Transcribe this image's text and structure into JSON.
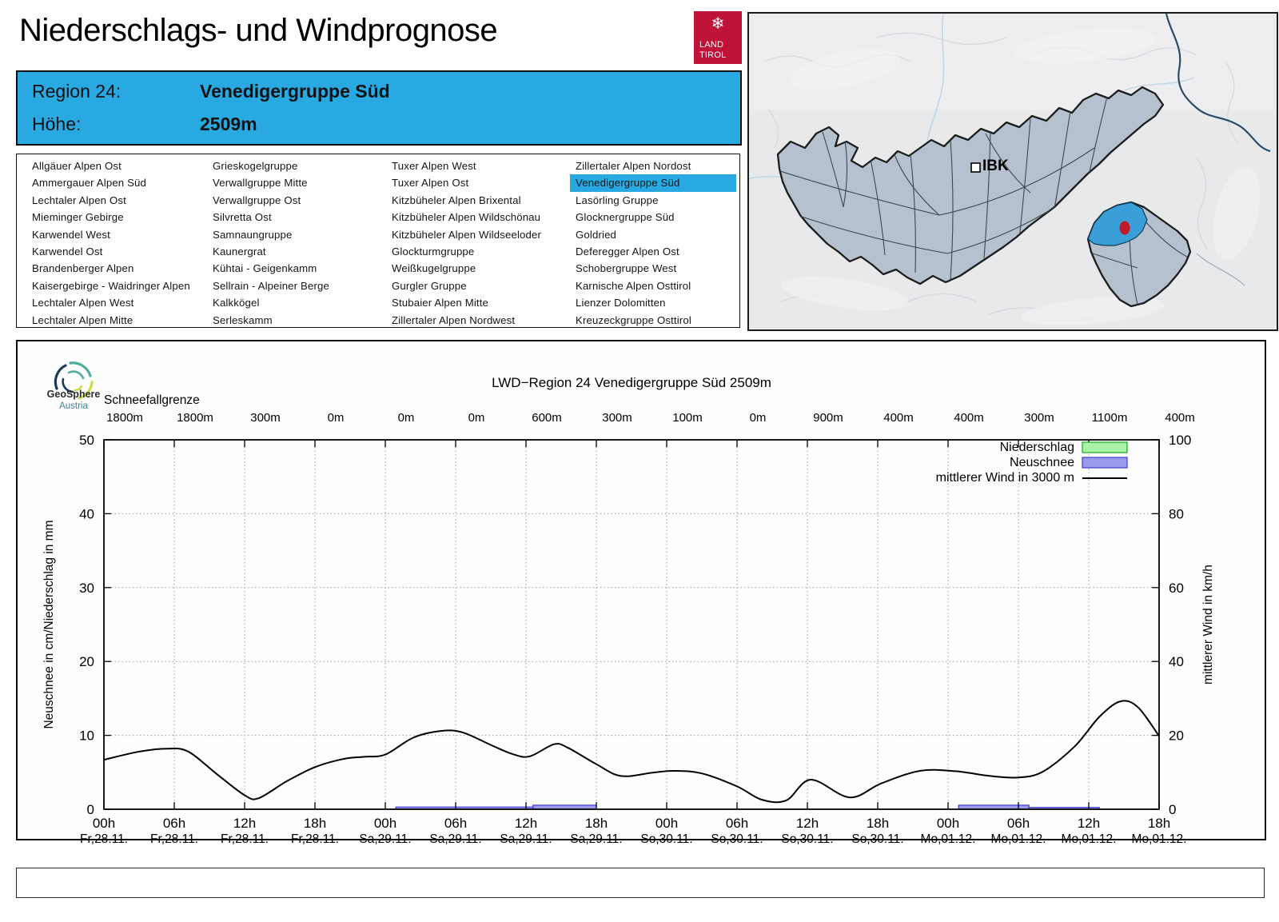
{
  "page": {
    "title": "Niederschlags- und Windprognose"
  },
  "brand": {
    "line1": "LAND",
    "line2": "TIROL",
    "flake_icon": "snowflake-icon",
    "color": "#bf1338"
  },
  "header": {
    "region_label": "Region 24:",
    "region_value": "Venedigergruppe Süd",
    "altitude_label": "Höhe:",
    "altitude_value": "2509m",
    "accent_color": "#29a9e2"
  },
  "region_list": {
    "selected": "Venedigergruppe Süd",
    "columns": [
      [
        "Allgäuer Alpen Ost",
        "Ammergauer Alpen Süd",
        "Lechtaler Alpen Ost",
        "Mieminger Gebirge",
        "Karwendel West",
        "Karwendel Ost",
        "Brandenberger Alpen",
        "Kaisergebirge - Waidringer Alpen",
        "Lechtaler Alpen West",
        "Lechtaler Alpen Mitte"
      ],
      [
        "Grieskogelgruppe",
        "Verwallgruppe Mitte",
        "Verwallgruppe Ost",
        "Silvretta Ost",
        "Samnaungruppe",
        "Kaunergrat",
        "Kühtai - Geigenkamm",
        "Sellrain - Alpeiner Berge",
        "Kalkkögel",
        "Serleskamm"
      ],
      [
        "Tuxer Alpen West",
        "Tuxer Alpen Ost",
        "Kitzbüheler Alpen Brixental",
        "Kitzbüheler Alpen Wildschönau",
        "Kitzbüheler Alpen Wildseeloder",
        "Glockturmgruppe",
        "Weißkugelgruppe",
        "Gurgler Gruppe",
        "Stubaier Alpen Mitte",
        "Zillertaler Alpen Nordwest"
      ],
      [
        "Zillertaler Alpen Nordost",
        "Venedigergruppe Süd",
        "Lasörling Gruppe",
        "Glocknergruppe Süd",
        "Goldried",
        "Deferegger Alpen Ost",
        "Schobergruppe West",
        "Karnische Alpen Osttirol",
        "Lienzer Dolomitten",
        "Kreuzeckgruppe Osttirol"
      ]
    ]
  },
  "map": {
    "ibk_label": "IBK",
    "highlight_color": "#3a9fd9",
    "region_fill": "#b5c1ce",
    "dot_color": "#c11a28"
  },
  "geosphere": {
    "name": "GeoSphere",
    "sub": "Austria"
  },
  "chart_data": {
    "type": "line",
    "title": "LWD−Region 24 Venedigergruppe Süd 2509m",
    "snowline": {
      "label": "Schneefallgrenze",
      "values": [
        "1800m",
        "1800m",
        "300m",
        "0m",
        "0m",
        "0m",
        "600m",
        "300m",
        "100m",
        "0m",
        "900m",
        "400m",
        "400m",
        "300m",
        "1100m",
        "400m"
      ]
    },
    "axes": {
      "left_label": "Neuschnee in cm/Niederschlag in mm",
      "left_ticks": [
        0,
        10,
        20,
        30,
        40,
        50
      ],
      "left_range": [
        0,
        50
      ],
      "right_label": "mittlerer Wind in km/h",
      "right_ticks": [
        0,
        20,
        40,
        60,
        80,
        100
      ],
      "right_range": [
        0,
        100
      ],
      "x_hours": [
        "00h",
        "06h",
        "12h",
        "18h",
        "00h",
        "06h",
        "12h",
        "18h",
        "00h",
        "06h",
        "12h",
        "18h",
        "00h",
        "06h",
        "12h",
        "18h"
      ],
      "x_dates": [
        "Fr,28.11.",
        "Fr,28.11.",
        "Fr,28.11.",
        "Fr,28.11.",
        "Sa,29.11.",
        "Sa,29.11.",
        "Sa,29.11.",
        "Sa,29.11.",
        "So,30.11.",
        "So,30.11.",
        "So,30.11.",
        "So,30.11.",
        "Mo,01.12.",
        "Mo,01.12.",
        "Mo,01.12.",
        "Mo,01.12."
      ],
      "grid": true
    },
    "legend": [
      {
        "label": "Niederschlag",
        "type": "box",
        "fill": "#a9f3a9",
        "stroke": "#16a916"
      },
      {
        "label": "Neuschnee",
        "type": "box",
        "fill": "#9b9bec",
        "stroke": "#3d3dd2"
      },
      {
        "label": "mittlerer Wind in 3000 m",
        "type": "line",
        "stroke": "#000000"
      }
    ],
    "neuschnee_bars_cm": [
      {
        "from_t": 4.15,
        "to_t": 6.1,
        "cm": 0.3
      },
      {
        "from_t": 6.1,
        "to_t": 7.0,
        "cm": 0.55
      },
      {
        "from_t": 12.15,
        "to_t": 13.15,
        "cm": 0.55
      },
      {
        "from_t": 13.15,
        "to_t": 14.15,
        "cm": 0.25
      }
    ],
    "niederschlag_bars_mm": [],
    "wind_kmh": [
      [
        0,
        13.4
      ],
      [
        0.5,
        15.6
      ],
      [
        0.9,
        16.4
      ],
      [
        1.2,
        15.6
      ],
      [
        1.6,
        9.6
      ],
      [
        2.0,
        3.8
      ],
      [
        2.2,
        3.0
      ],
      [
        2.6,
        7.6
      ],
      [
        3.0,
        11.4
      ],
      [
        3.4,
        13.6
      ],
      [
        3.7,
        14.2
      ],
      [
        4.0,
        14.8
      ],
      [
        4.4,
        19.4
      ],
      [
        4.8,
        21.2
      ],
      [
        5.1,
        20.8
      ],
      [
        5.5,
        17.4
      ],
      [
        5.8,
        15.0
      ],
      [
        6.05,
        14.3
      ],
      [
        6.4,
        17.6
      ],
      [
        6.6,
        16.6
      ],
      [
        7.0,
        12.2
      ],
      [
        7.35,
        9.0
      ],
      [
        7.8,
        9.9
      ],
      [
        8.1,
        10.4
      ],
      [
        8.5,
        9.7
      ],
      [
        9.0,
        6.2
      ],
      [
        9.35,
        2.6
      ],
      [
        9.7,
        2.4
      ],
      [
        10.05,
        8.0
      ],
      [
        10.6,
        3.2
      ],
      [
        11.05,
        7.0
      ],
      [
        11.6,
        10.4
      ],
      [
        12.1,
        10.3
      ],
      [
        12.6,
        9.0
      ],
      [
        13.0,
        8.6
      ],
      [
        13.35,
        10.2
      ],
      [
        13.8,
        17.0
      ],
      [
        14.15,
        25.0
      ],
      [
        14.45,
        29.2
      ],
      [
        14.7,
        27.6
      ],
      [
        15.0,
        19.8
      ]
    ]
  }
}
